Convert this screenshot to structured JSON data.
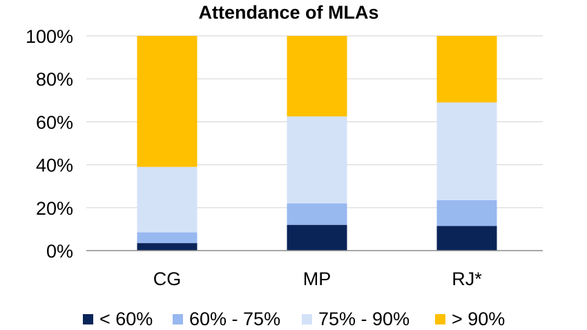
{
  "chart_data": {
    "type": "bar",
    "stacked": true,
    "title": "Attendance of MLAs",
    "xlabel": "",
    "ylabel": "",
    "ylim": [
      0,
      100
    ],
    "yticks": [
      "0%",
      "20%",
      "40%",
      "60%",
      "80%",
      "100%"
    ],
    "ytick_values": [
      0,
      20,
      40,
      60,
      80,
      100
    ],
    "categories": [
      "CG",
      "MP",
      "RJ*"
    ],
    "series": [
      {
        "name": "< 60%",
        "color": "#0b2458",
        "values": [
          3.5,
          12,
          11.5
        ]
      },
      {
        "name": "60% - 75%",
        "color": "#98b8f0",
        "values": [
          5,
          10,
          12
        ]
      },
      {
        "name": "75% - 90%",
        "color": "#d4e2f8",
        "values": [
          30.5,
          40.5,
          45.5
        ]
      },
      {
        "name": "> 90%",
        "color": "#ffc000",
        "values": [
          61,
          37.5,
          31
        ]
      }
    ],
    "grid": true,
    "legend_position": "bottom"
  }
}
